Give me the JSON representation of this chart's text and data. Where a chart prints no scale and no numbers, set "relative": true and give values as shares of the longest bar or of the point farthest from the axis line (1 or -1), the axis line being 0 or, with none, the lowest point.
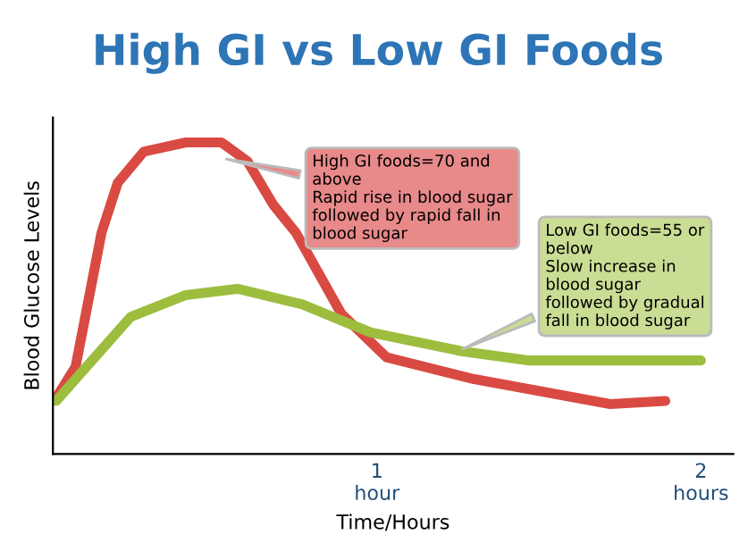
{
  "chart_data": {
    "type": "line",
    "title": "High GI vs Low GI Foods",
    "xlabel": "Time/Hours",
    "ylabel": "Blood Glucose Levels",
    "relative": true,
    "x": [
      0.01,
      0.07,
      0.15,
      0.2,
      0.28,
      0.41,
      0.52,
      0.6,
      0.68,
      0.75,
      0.89,
      1.03,
      1.3,
      1.72,
      1.89
    ],
    "xlim": [
      0,
      2.1
    ],
    "xticks": [
      {
        "value": 1,
        "label": "1\nhour"
      },
      {
        "value": 2,
        "label": "2\nhours"
      }
    ],
    "series": [
      {
        "color": "#d94a43",
        "values": [
          0.18,
          0.28,
          0.71,
          0.87,
          0.97,
          1.0,
          1.0,
          0.94,
          0.8,
          0.71,
          0.45,
          0.31,
          0.24,
          0.16,
          0.17
        ]
      },
      {
        "color": "#9dbd3f",
        "x": [
          0.01,
          0.24,
          0.41,
          0.57,
          0.77,
          0.98,
          1.26,
          1.47,
          2.0
        ],
        "values": [
          0.17,
          0.44,
          0.51,
          0.53,
          0.48,
          0.39,
          0.33,
          0.3,
          0.3
        ]
      }
    ],
    "annotations": [
      {
        "text": "High GI foods=70 and\nabove\nRapid rise in blood sugar\nfollowed by rapid fall in\nblood sugar",
        "x": 0.52,
        "y": 0.95
      },
      {
        "text": "Low GI foods=55 or\nbelow\nSlow increase in\nblood sugar\nfollowed by gradual\nfall in blood sugar",
        "x": 1.25,
        "y": 0.33
      }
    ],
    "grid": false,
    "marker": "none",
    "line_style": "solid"
  }
}
